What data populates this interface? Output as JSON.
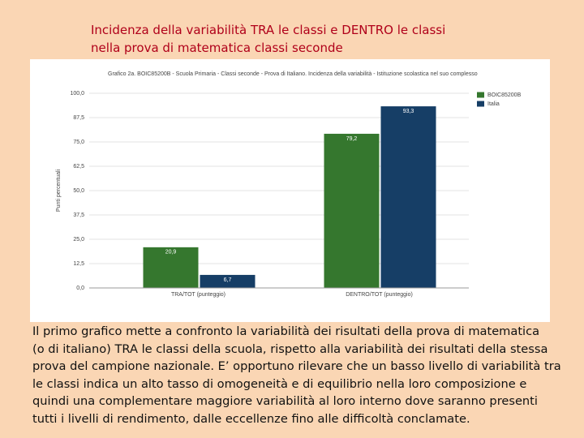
{
  "slide": {
    "title": "Incidenza della variabilità TRA le classi e DENTRO le classi nella prova di matematica classi seconde",
    "body": [
      "Il primo grafico mette a confronto la variabilità dei risultati della prova di matematica",
      "(o di italiano) TRA le classi della scuola, rispetto alla variabilità dei risultati della stessa",
      "prova del campione nazionale. E’ opportuno rilevare che un basso livello di variabilità tra",
      "le classi indica un alto tasso di omogeneità e di equilibrio nella loro composizione e",
      "quindi una complementare maggiore variabilità al loro interno dove saranno presenti",
      "tutti i livelli di rendimento, dalle eccellenze fino alle difficoltà conclamate."
    ]
  },
  "chart_data": {
    "type": "bar",
    "title": "Grafico 2a. BOIC85200B - Scuola Primaria - Classi seconde - Prova di Italiano. Incidenza della variabilità - Istituzione scolastica nel suo complesso",
    "y_label": "Punti percentuali",
    "categories": [
      "TRA/TOT (punteggio)",
      "DENTRO/TOT (punteggio)"
    ],
    "series": [
      {
        "name": "BOIC85200B",
        "color": "#35772e",
        "values": [
          20.9,
          79.2
        ],
        "value_labels": [
          "20,9",
          "79,2"
        ]
      },
      {
        "name": "Italia",
        "color": "#163e66",
        "values": [
          6.7,
          93.3
        ],
        "value_labels": [
          "6,7",
          "93,3"
        ]
      }
    ],
    "ylim": [
      0,
      100
    ],
    "yticks": [
      {
        "value": 0,
        "label": "0,0"
      },
      {
        "value": 12.5,
        "label": "12,5"
      },
      {
        "value": 25,
        "label": "25,0"
      },
      {
        "value": 37.5,
        "label": "37,5"
      },
      {
        "value": 50,
        "label": "50,0"
      },
      {
        "value": 62.5,
        "label": "62,5"
      },
      {
        "value": 75,
        "label": "75,0"
      },
      {
        "value": 87.5,
        "label": "87,5"
      },
      {
        "value": 100,
        "label": "100,0"
      }
    ],
    "grid": true,
    "legend": "right"
  }
}
